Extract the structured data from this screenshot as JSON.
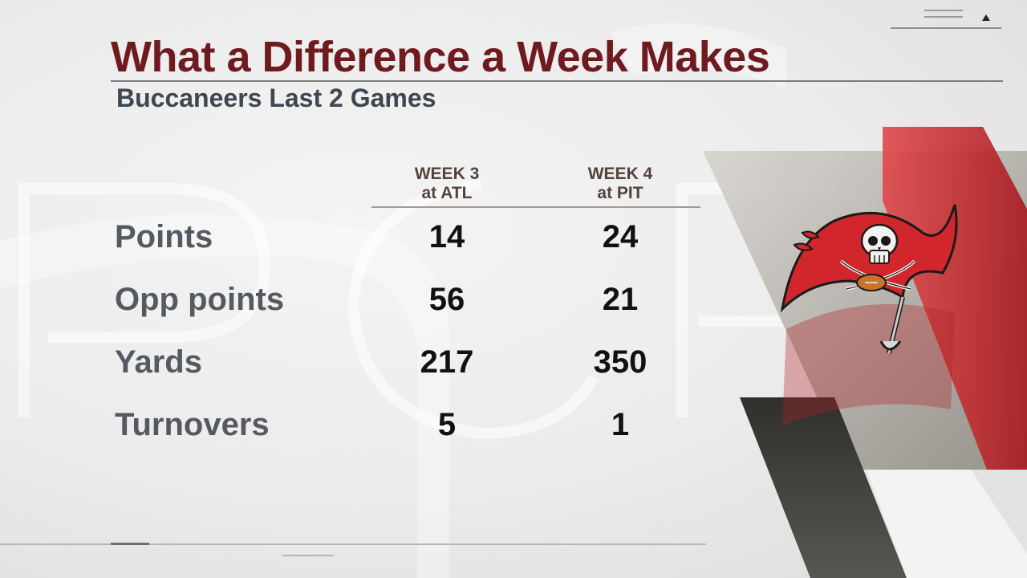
{
  "header": {
    "title": "What a Difference a Week Makes",
    "subtitle": "Buccaneers Last 2 Games"
  },
  "columns": [
    {
      "week": "WEEK 3",
      "opponent": "at ATL"
    },
    {
      "week": "WEEK 4",
      "opponent": "at PIT"
    }
  ],
  "rows": [
    {
      "label": "Points",
      "values": [
        "14",
        "24"
      ]
    },
    {
      "label": "Opp points",
      "values": [
        "56",
        "21"
      ]
    },
    {
      "label": "Yards",
      "values": [
        "217",
        "350"
      ]
    },
    {
      "label": "Turnovers",
      "values": [
        "5",
        "1"
      ]
    }
  ],
  "logo": {
    "icon": "buccaneers-flag-logo-icon"
  },
  "colors": {
    "title": "#6e1a1f",
    "subtitle": "#3d4651",
    "label": "#555a60",
    "value": "#111111",
    "accent_red": "#c8262a",
    "accent_dark": "#3a3a36"
  }
}
